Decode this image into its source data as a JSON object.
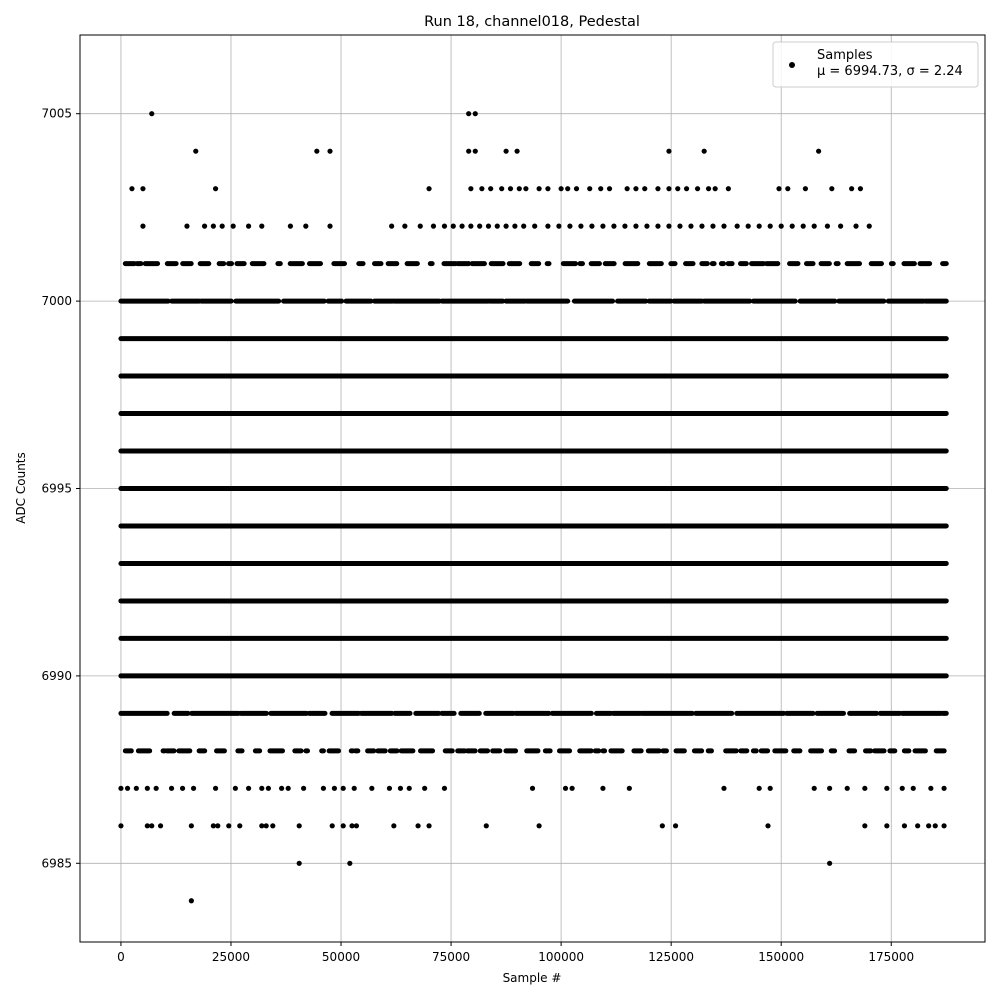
{
  "chart_data": {
    "type": "scatter",
    "title": "Run 18, channel018, Pedestal",
    "xlabel": "Sample #",
    "ylabel": "ADC Counts",
    "xlim": [
      -9300,
      196300
    ],
    "ylim": [
      6982.9,
      7007.1
    ],
    "x_ticks": [
      0,
      25000,
      50000,
      75000,
      100000,
      125000,
      150000,
      175000
    ],
    "y_ticks": [
      6985,
      6990,
      6995,
      7000,
      7005
    ],
    "grid": true,
    "legend_position": "top-right",
    "marker_color": "#000000",
    "series": [
      {
        "name": "Samples",
        "stats_label": "μ = 6994.73, σ = 2.24",
        "x_start": 0,
        "x_end": 187500,
        "dense_levels": [
          6990,
          6991,
          6992,
          6993,
          6994,
          6995,
          6996,
          6997,
          6998,
          6999
        ],
        "medium_levels": [
          6989,
          7000
        ],
        "sparse_levels": [
          6988,
          7001
        ],
        "points": [
          [
            16000,
            6984
          ],
          [
            40500,
            6985
          ],
          [
            52000,
            6985
          ],
          [
            161000,
            6985
          ],
          [
            0,
            6986
          ],
          [
            6000,
            6986
          ],
          [
            7000,
            6986
          ],
          [
            9000,
            6986
          ],
          [
            16000,
            6986
          ],
          [
            21000,
            6986
          ],
          [
            22000,
            6986
          ],
          [
            24500,
            6986
          ],
          [
            27000,
            6986
          ],
          [
            32000,
            6986
          ],
          [
            33000,
            6986
          ],
          [
            34500,
            6986
          ],
          [
            40500,
            6986
          ],
          [
            48000,
            6986
          ],
          [
            50500,
            6986
          ],
          [
            52500,
            6986
          ],
          [
            53500,
            6986
          ],
          [
            62000,
            6986
          ],
          [
            67500,
            6986
          ],
          [
            70000,
            6986
          ],
          [
            83000,
            6986
          ],
          [
            95000,
            6986
          ],
          [
            123000,
            6986
          ],
          [
            126000,
            6986
          ],
          [
            147000,
            6986
          ],
          [
            169000,
            6986
          ],
          [
            174000,
            6986
          ],
          [
            178000,
            6986
          ],
          [
            181000,
            6986
          ],
          [
            183500,
            6986
          ],
          [
            185000,
            6986
          ],
          [
            187000,
            6986
          ],
          [
            0,
            6987
          ],
          [
            1500,
            6987
          ],
          [
            3500,
            6987
          ],
          [
            6000,
            6987
          ],
          [
            8000,
            6987
          ],
          [
            11500,
            6987
          ],
          [
            14000,
            6987
          ],
          [
            16500,
            6987
          ],
          [
            21500,
            6987
          ],
          [
            26000,
            6987
          ],
          [
            29000,
            6987
          ],
          [
            32000,
            6987
          ],
          [
            33500,
            6987
          ],
          [
            36500,
            6987
          ],
          [
            38000,
            6987
          ],
          [
            41500,
            6987
          ],
          [
            46000,
            6987
          ],
          [
            48500,
            6987
          ],
          [
            50500,
            6987
          ],
          [
            53000,
            6987
          ],
          [
            57000,
            6987
          ],
          [
            61000,
            6987
          ],
          [
            63500,
            6987
          ],
          [
            65500,
            6987
          ],
          [
            69000,
            6987
          ],
          [
            73500,
            6987
          ],
          [
            93500,
            6987
          ],
          [
            101000,
            6987
          ],
          [
            102500,
            6987
          ],
          [
            109500,
            6987
          ],
          [
            115500,
            6987
          ],
          [
            137000,
            6987
          ],
          [
            145000,
            6987
          ],
          [
            147500,
            6987
          ],
          [
            157500,
            6987
          ],
          [
            161000,
            6987
          ],
          [
            165000,
            6987
          ],
          [
            169000,
            6987
          ],
          [
            174000,
            6987
          ],
          [
            177500,
            6987
          ],
          [
            180000,
            6987
          ],
          [
            184000,
            6987
          ],
          [
            187000,
            6987
          ],
          [
            7005,
            7005
          ],
          [
            79000,
            7005
          ],
          [
            80500,
            7005
          ],
          [
            17000,
            7004
          ],
          [
            44500,
            7004
          ],
          [
            47500,
            7004
          ],
          [
            79000,
            7004
          ],
          [
            80500,
            7004
          ],
          [
            87500,
            7004
          ],
          [
            90000,
            7004
          ],
          [
            124500,
            7004
          ],
          [
            132500,
            7004
          ],
          [
            158500,
            7004
          ],
          [
            2500,
            7003
          ],
          [
            5000,
            7003
          ],
          [
            21500,
            7003
          ],
          [
            70000,
            7003
          ],
          [
            79500,
            7003
          ],
          [
            82000,
            7003
          ],
          [
            84000,
            7003
          ],
          [
            86500,
            7003
          ],
          [
            88500,
            7003
          ],
          [
            90500,
            7003
          ],
          [
            92000,
            7003
          ],
          [
            95000,
            7003
          ],
          [
            97000,
            7003
          ],
          [
            100000,
            7003
          ],
          [
            101500,
            7003
          ],
          [
            103500,
            7003
          ],
          [
            106500,
            7003
          ],
          [
            109000,
            7003
          ],
          [
            111000,
            7003
          ],
          [
            115000,
            7003
          ],
          [
            117000,
            7003
          ],
          [
            119000,
            7003
          ],
          [
            122000,
            7003
          ],
          [
            124500,
            7003
          ],
          [
            126500,
            7003
          ],
          [
            128500,
            7003
          ],
          [
            131000,
            7003
          ],
          [
            133500,
            7003
          ],
          [
            135000,
            7003
          ],
          [
            138000,
            7003
          ],
          [
            149500,
            7003
          ],
          [
            151500,
            7003
          ],
          [
            155500,
            7003
          ],
          [
            161500,
            7003
          ],
          [
            166000,
            7003
          ],
          [
            168000,
            7003
          ],
          [
            5000,
            7002
          ],
          [
            15000,
            7002
          ],
          [
            19000,
            7002
          ],
          [
            21000,
            7002
          ],
          [
            23000,
            7002
          ],
          [
            25500,
            7002
          ],
          [
            29000,
            7002
          ],
          [
            32000,
            7002
          ],
          [
            38500,
            7002
          ],
          [
            42000,
            7002
          ],
          [
            47500,
            7002
          ],
          [
            61500,
            7002
          ],
          [
            64500,
            7002
          ],
          [
            68000,
            7002
          ],
          [
            71000,
            7002
          ],
          [
            73500,
            7002
          ],
          [
            75500,
            7002
          ],
          [
            77500,
            7002
          ],
          [
            79500,
            7002
          ],
          [
            81500,
            7002
          ],
          [
            83500,
            7002
          ],
          [
            85500,
            7002
          ],
          [
            87500,
            7002
          ],
          [
            89500,
            7002
          ],
          [
            91500,
            7002
          ],
          [
            94000,
            7002
          ],
          [
            97000,
            7002
          ],
          [
            99500,
            7002
          ],
          [
            102000,
            7002
          ],
          [
            104500,
            7002
          ],
          [
            107000,
            7002
          ],
          [
            109500,
            7002
          ],
          [
            112000,
            7002
          ],
          [
            114500,
            7002
          ],
          [
            117000,
            7002
          ],
          [
            119500,
            7002
          ],
          [
            122000,
            7002
          ],
          [
            124500,
            7002
          ],
          [
            127000,
            7002
          ],
          [
            129500,
            7002
          ],
          [
            132000,
            7002
          ],
          [
            134500,
            7002
          ],
          [
            137000,
            7002
          ],
          [
            140000,
            7002
          ],
          [
            142500,
            7002
          ],
          [
            145000,
            7002
          ],
          [
            147500,
            7002
          ],
          [
            150000,
            7002
          ],
          [
            152500,
            7002
          ],
          [
            155000,
            7002
          ],
          [
            157500,
            7002
          ],
          [
            160500,
            7002
          ],
          [
            163500,
            7002
          ],
          [
            167000,
            7002
          ],
          [
            170000,
            7002
          ]
        ]
      }
    ]
  }
}
